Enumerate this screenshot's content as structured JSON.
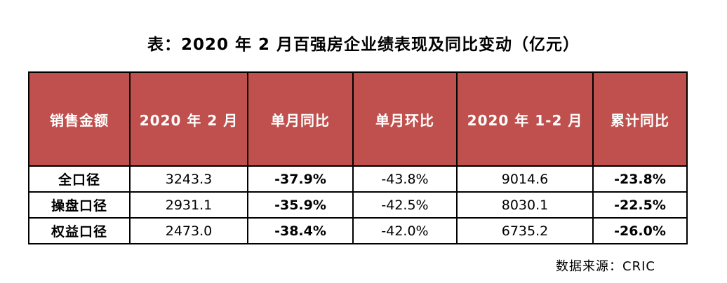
{
  "title": "表：2020 年 2 月百强房企业绩表现及同比变动（亿元）",
  "header_color": "#c0504d",
  "table": {
    "columns": [
      "销售金额",
      "2020 年 2 月",
      "单月同比",
      "单月环比",
      "2020 年 1-2 月",
      "累计同比"
    ],
    "rows": [
      {
        "label": "全口径",
        "feb_2020": "3243.3",
        "mom_yoy": "-37.9%",
        "mom_qoq": "-43.8%",
        "jan_feb_2020": "9014.6",
        "cum_yoy": "-23.8%"
      },
      {
        "label": "操盘口径",
        "feb_2020": "2931.1",
        "mom_yoy": "-35.9%",
        "mom_qoq": "-42.5%",
        "jan_feb_2020": "8030.1",
        "cum_yoy": "-22.5%"
      },
      {
        "label": "权益口径",
        "feb_2020": "2473.0",
        "mom_yoy": "-38.4%",
        "mom_qoq": "-42.0%",
        "jan_feb_2020": "6735.2",
        "cum_yoy": "-26.0%"
      }
    ]
  },
  "source": "数据来源：CRIC"
}
